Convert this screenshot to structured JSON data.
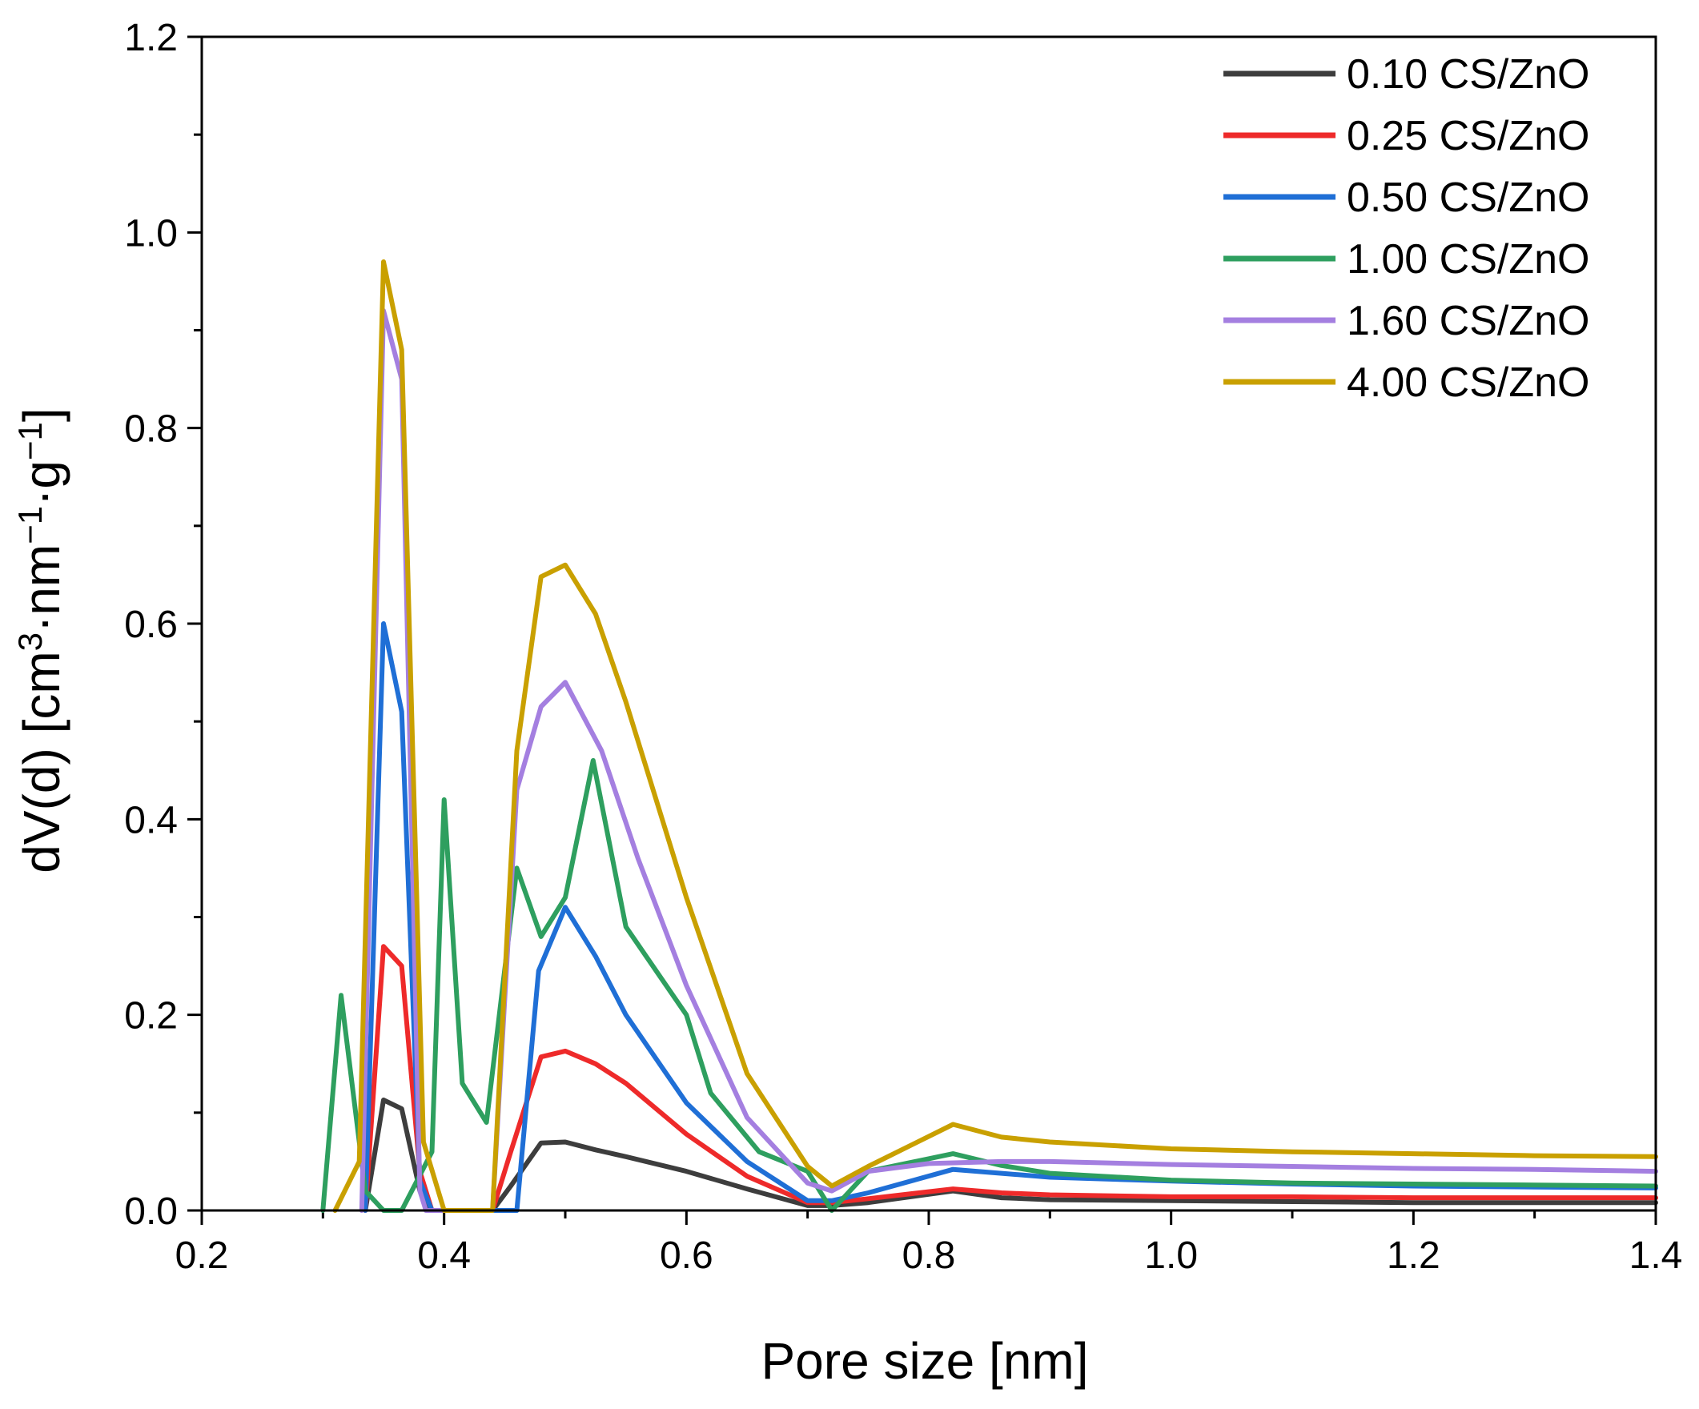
{
  "chart_data": {
    "type": "line",
    "title": "",
    "xlabel": "Pore size [nm]",
    "ylabel": {
      "prefix": "dV(d) [cm",
      "sup1": "3",
      "mid1": "·nm",
      "sup2": "−1",
      "mid2": "·g",
      "sup3": "−1",
      "suffix": "]"
    },
    "xlim": [
      0.2,
      1.4
    ],
    "ylim": [
      0.0,
      1.2
    ],
    "xticks": [
      0.2,
      0.4,
      0.6,
      0.8,
      1.0,
      1.2,
      1.4
    ],
    "xtick_labels": [
      "0.2",
      "0.4",
      "0.6",
      "0.8",
      "1.0",
      "1.2",
      "1.4"
    ],
    "yticks": [
      0.0,
      0.2,
      0.4,
      0.6,
      0.8,
      1.0,
      1.2
    ],
    "ytick_labels": [
      "0.0",
      "0.2",
      "0.4",
      "0.6",
      "0.8",
      "1.0",
      "1.2"
    ],
    "grid": false,
    "legend_position": "top-right",
    "series": [
      {
        "name": "0.10 CS/ZnO",
        "color": "#3d3d3d",
        "x": [
          0.335,
          0.35,
          0.365,
          0.38,
          0.39,
          0.44,
          0.455,
          0.48,
          0.5,
          0.525,
          0.55,
          0.6,
          0.65,
          0.7,
          0.72,
          0.75,
          0.82,
          0.86,
          0.9,
          1.0,
          1.1,
          1.2,
          1.3,
          1.4
        ],
        "y": [
          0.0,
          0.113,
          0.104,
          0.02,
          0.0,
          0.0,
          0.025,
          0.069,
          0.07,
          0.062,
          0.055,
          0.04,
          0.022,
          0.005,
          0.005,
          0.008,
          0.02,
          0.013,
          0.011,
          0.01,
          0.009,
          0.008,
          0.008,
          0.008
        ]
      },
      {
        "name": "0.25 CS/ZnO",
        "color": "#ee2a2a",
        "x": [
          0.335,
          0.35,
          0.365,
          0.38,
          0.39,
          0.44,
          0.455,
          0.48,
          0.5,
          0.525,
          0.55,
          0.6,
          0.65,
          0.7,
          0.72,
          0.75,
          0.82,
          0.86,
          0.9,
          1.0,
          1.1,
          1.2,
          1.3,
          1.4
        ],
        "y": [
          0.0,
          0.27,
          0.25,
          0.04,
          0.0,
          0.0,
          0.06,
          0.157,
          0.163,
          0.15,
          0.13,
          0.078,
          0.035,
          0.008,
          0.008,
          0.012,
          0.022,
          0.018,
          0.016,
          0.014,
          0.014,
          0.013,
          0.013,
          0.013
        ]
      },
      {
        "name": "0.50 CS/ZnO",
        "color": "#1f6fd6",
        "x": [
          0.335,
          0.35,
          0.365,
          0.38,
          0.39,
          0.46,
          0.478,
          0.5,
          0.525,
          0.55,
          0.6,
          0.65,
          0.7,
          0.72,
          0.75,
          0.82,
          0.86,
          0.9,
          1.0,
          1.1,
          1.2,
          1.3,
          1.4
        ],
        "y": [
          0.0,
          0.6,
          0.51,
          0.03,
          0.0,
          0.0,
          0.245,
          0.31,
          0.26,
          0.2,
          0.11,
          0.05,
          0.01,
          0.01,
          0.018,
          0.042,
          0.038,
          0.034,
          0.03,
          0.027,
          0.025,
          0.024,
          0.023
        ]
      },
      {
        "name": "1.00 CS/ZnO",
        "color": "#2e9f5f",
        "x": [
          0.3,
          0.315,
          0.335,
          0.35,
          0.365,
          0.39,
          0.4,
          0.415,
          0.435,
          0.46,
          0.48,
          0.5,
          0.523,
          0.55,
          0.6,
          0.62,
          0.66,
          0.7,
          0.72,
          0.75,
          0.82,
          0.86,
          0.9,
          1.0,
          1.1,
          1.2,
          1.3,
          1.4
        ],
        "y": [
          0.0,
          0.22,
          0.02,
          0.0,
          0.0,
          0.06,
          0.42,
          0.13,
          0.09,
          0.35,
          0.28,
          0.32,
          0.46,
          0.29,
          0.2,
          0.12,
          0.06,
          0.04,
          0.0,
          0.04,
          0.058,
          0.046,
          0.038,
          0.031,
          0.028,
          0.027,
          0.026,
          0.025
        ]
      },
      {
        "name": "1.60 CS/ZnO",
        "color": "#a47fe0",
        "x": [
          0.332,
          0.35,
          0.365,
          0.38,
          0.385,
          0.44,
          0.46,
          0.48,
          0.5,
          0.53,
          0.56,
          0.6,
          0.65,
          0.7,
          0.72,
          0.75,
          0.8,
          0.86,
          0.9,
          1.0,
          1.1,
          1.2,
          1.3,
          1.4
        ],
        "y": [
          0.0,
          0.92,
          0.85,
          0.02,
          0.0,
          0.0,
          0.43,
          0.515,
          0.54,
          0.47,
          0.36,
          0.23,
          0.095,
          0.028,
          0.02,
          0.04,
          0.048,
          0.05,
          0.05,
          0.047,
          0.045,
          0.043,
          0.042,
          0.04
        ]
      },
      {
        "name": "4.00 CS/ZnO",
        "color": "#c9a000",
        "x": [
          0.31,
          0.33,
          0.35,
          0.365,
          0.383,
          0.4,
          0.44,
          0.46,
          0.48,
          0.5,
          0.525,
          0.55,
          0.6,
          0.65,
          0.7,
          0.72,
          0.75,
          0.82,
          0.86,
          0.9,
          1.0,
          1.1,
          1.2,
          1.3,
          1.4
        ],
        "y": [
          0.0,
          0.05,
          0.97,
          0.88,
          0.07,
          0.0,
          0.0,
          0.47,
          0.648,
          0.66,
          0.61,
          0.52,
          0.32,
          0.14,
          0.045,
          0.025,
          0.045,
          0.088,
          0.075,
          0.07,
          0.063,
          0.06,
          0.058,
          0.056,
          0.055
        ]
      }
    ]
  }
}
